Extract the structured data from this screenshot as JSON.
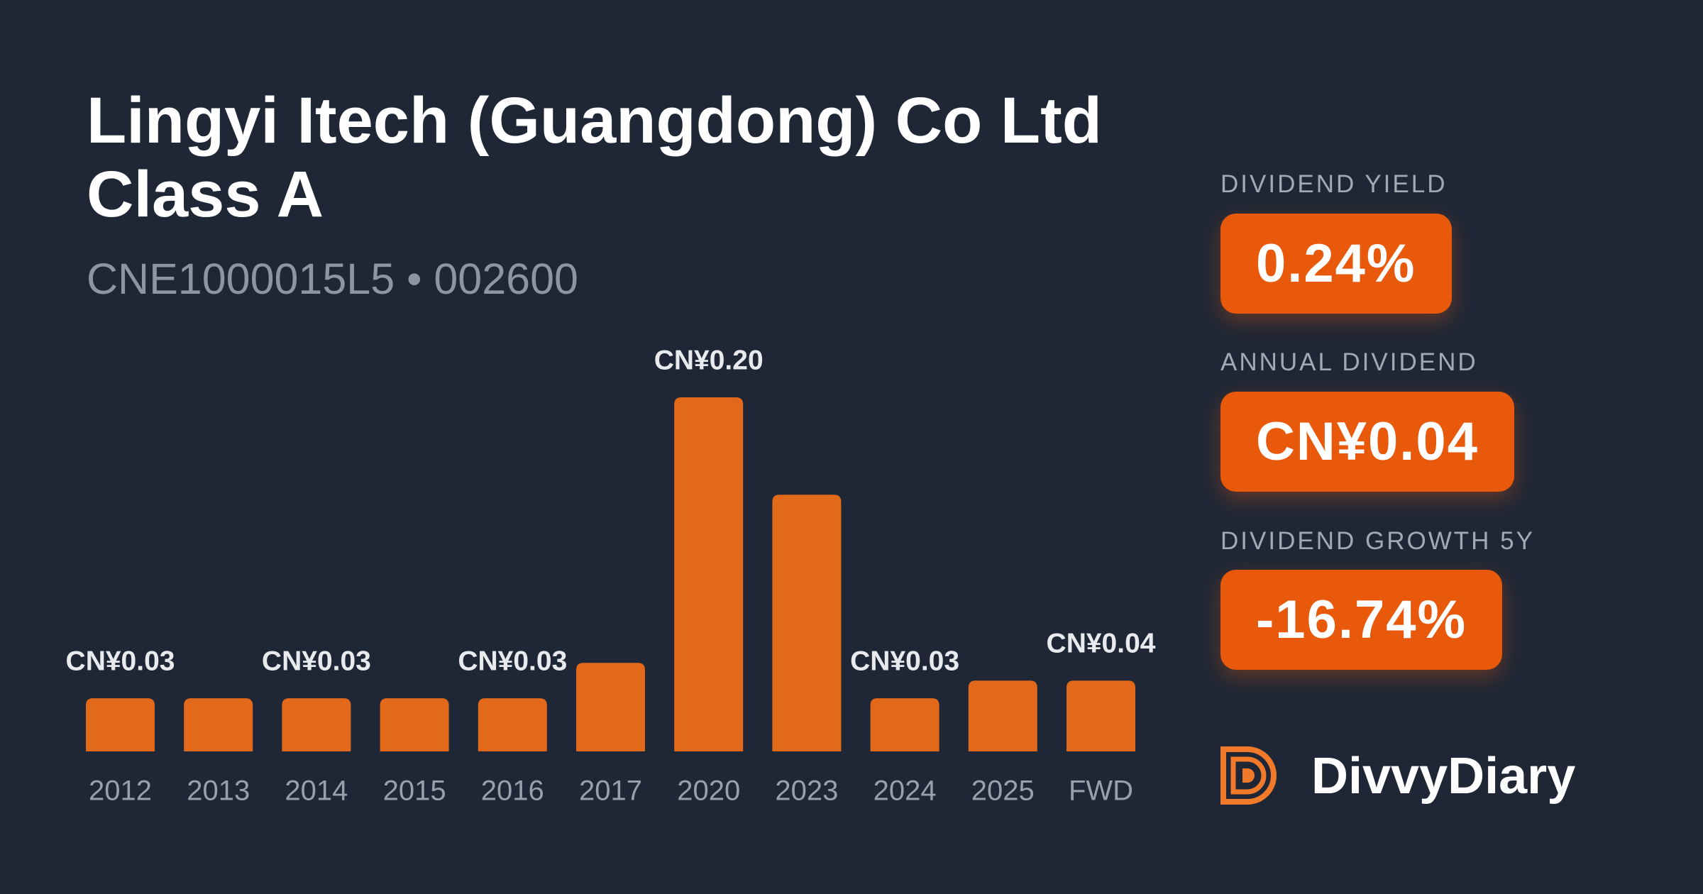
{
  "header": {
    "title": "Lingyi Itech (Guangdong) Co Ltd Class A",
    "subtitle": "CNE1000015L5 • 002600"
  },
  "chart_data": {
    "type": "bar",
    "color": "#e2691a",
    "categories": [
      "2012",
      "2013",
      "2014",
      "2015",
      "2016",
      "2017",
      "2020",
      "2023",
      "2024",
      "2025",
      "FWD"
    ],
    "values": [
      0.03,
      0.03,
      0.03,
      0.03,
      0.03,
      0.05,
      0.2,
      0.145,
      0.03,
      0.04,
      0.04
    ],
    "value_labels": [
      "CN¥0.03",
      null,
      "CN¥0.03",
      null,
      "CN¥0.03",
      null,
      "CN¥0.20",
      null,
      "CN¥0.03",
      null,
      "CN¥0.04"
    ]
  },
  "stats": [
    {
      "label": "DIVIDEND YIELD",
      "value": "0.24%"
    },
    {
      "label": "ANNUAL DIVIDEND",
      "value": "CN¥0.04"
    },
    {
      "label": "DIVIDEND GROWTH 5Y",
      "value": "-16.74%"
    }
  ],
  "brand": "DivvyDiary"
}
